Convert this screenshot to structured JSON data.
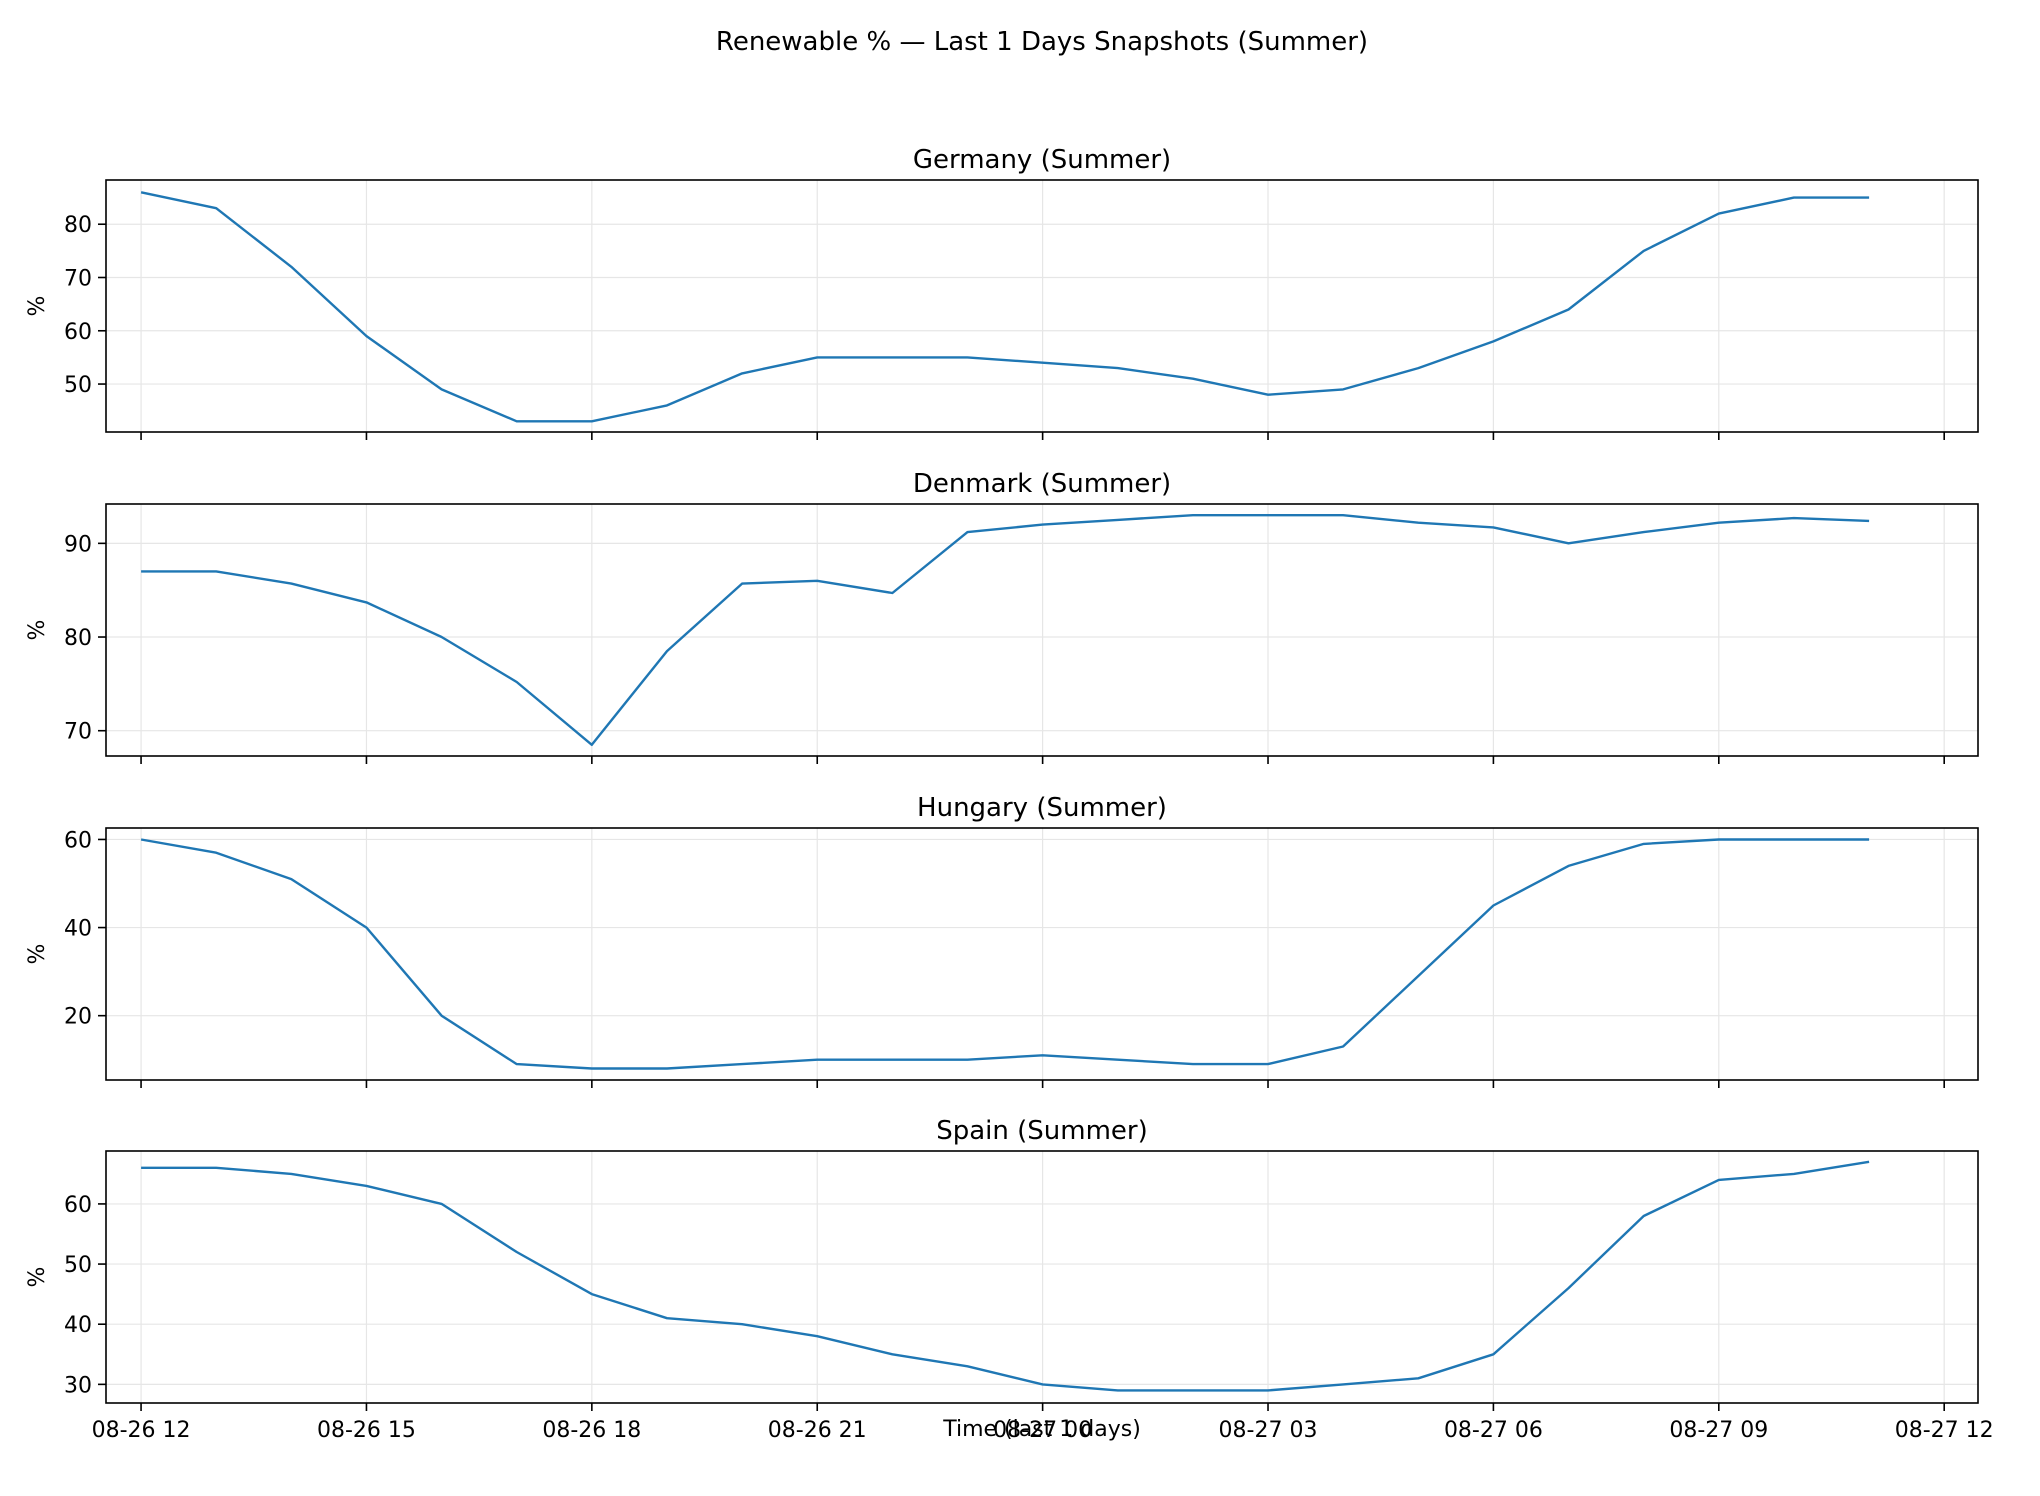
{
  "figure": {
    "title": "Renewable % — Last 1 Days Snapshots (Summer)",
    "xlabel": "Time (last 1 days)",
    "line_color": "#1f77b4",
    "grid_color": "#e6e6e6"
  },
  "chart_data": [
    {
      "type": "line",
      "title": "Germany (Summer)",
      "ylabel": "%",
      "xlim": [
        "2025-08-26 11:32",
        "2025-08-27 12:27"
      ],
      "ylim": [
        41.0,
        88.3
      ],
      "yticks": [
        50,
        60,
        70,
        80
      ],
      "xtick_labels": [
        "08-26 12",
        "08-26 15",
        "08-26 18",
        "08-26 21",
        "08-27 00",
        "08-27 03",
        "08-27 06",
        "08-27 09",
        "08-27 12"
      ],
      "grid": true,
      "x": [
        "2025-08-26 12:00",
        "2025-08-26 13:00",
        "2025-08-26 14:00",
        "2025-08-26 15:00",
        "2025-08-26 16:00",
        "2025-08-26 17:00",
        "2025-08-26 18:00",
        "2025-08-26 19:00",
        "2025-08-26 20:00",
        "2025-08-26 21:00",
        "2025-08-26 22:00",
        "2025-08-26 23:00",
        "2025-08-27 00:00",
        "2025-08-27 01:00",
        "2025-08-27 02:00",
        "2025-08-27 03:00",
        "2025-08-27 04:00",
        "2025-08-27 05:00",
        "2025-08-27 06:00",
        "2025-08-27 07:00",
        "2025-08-27 08:00",
        "2025-08-27 09:00",
        "2025-08-27 10:00",
        "2025-08-27 11:00"
      ],
      "series": [
        {
          "values": [
            86,
            83,
            72,
            59,
            49,
            43,
            43,
            46,
            52,
            55,
            55,
            55,
            54,
            53,
            51,
            48,
            49,
            53,
            58,
            64,
            75,
            82,
            85,
            85
          ]
        }
      ]
    },
    {
      "type": "line",
      "title": "Denmark (Summer)",
      "ylabel": "%",
      "xlim": [
        "2025-08-26 11:32",
        "2025-08-27 12:27"
      ],
      "ylim": [
        67.3,
        94.2
      ],
      "yticks": [
        70,
        80,
        90
      ],
      "xtick_labels": [
        "08-26 12",
        "08-26 15",
        "08-26 18",
        "08-26 21",
        "08-27 00",
        "08-27 03",
        "08-27 06",
        "08-27 09",
        "08-27 12"
      ],
      "grid": true,
      "x": [
        "2025-08-26 12:00",
        "2025-08-26 13:00",
        "2025-08-26 14:00",
        "2025-08-26 15:00",
        "2025-08-26 16:00",
        "2025-08-26 17:00",
        "2025-08-26 18:00",
        "2025-08-26 19:00",
        "2025-08-26 20:00",
        "2025-08-26 21:00",
        "2025-08-26 22:00",
        "2025-08-26 23:00",
        "2025-08-27 00:00",
        "2025-08-27 01:00",
        "2025-08-27 02:00",
        "2025-08-27 03:00",
        "2025-08-27 04:00",
        "2025-08-27 05:00",
        "2025-08-27 06:00",
        "2025-08-27 07:00",
        "2025-08-27 08:00",
        "2025-08-27 09:00",
        "2025-08-27 10:00",
        "2025-08-27 11:00"
      ],
      "series": [
        {
          "values": [
            87.0,
            87.0,
            85.7,
            83.7,
            80.0,
            75.2,
            68.5,
            78.5,
            85.7,
            86.0,
            84.7,
            91.2,
            92.0,
            92.5,
            93.0,
            93.0,
            93.0,
            92.2,
            91.7,
            90.0,
            91.2,
            92.2,
            92.7,
            92.4
          ]
        }
      ]
    },
    {
      "type": "line",
      "title": "Hungary (Summer)",
      "ylabel": "%",
      "xlim": [
        "2025-08-26 11:32",
        "2025-08-27 12:27"
      ],
      "ylim": [
        5.4,
        62.6
      ],
      "yticks": [
        20,
        40,
        60
      ],
      "xtick_labels": [
        "08-26 12",
        "08-26 15",
        "08-26 18",
        "08-26 21",
        "08-27 00",
        "08-27 03",
        "08-27 06",
        "08-27 09",
        "08-27 12"
      ],
      "grid": true,
      "x": [
        "2025-08-26 12:00",
        "2025-08-26 13:00",
        "2025-08-26 14:00",
        "2025-08-26 15:00",
        "2025-08-26 16:00",
        "2025-08-26 17:00",
        "2025-08-26 18:00",
        "2025-08-26 19:00",
        "2025-08-26 20:00",
        "2025-08-26 21:00",
        "2025-08-26 22:00",
        "2025-08-26 23:00",
        "2025-08-27 00:00",
        "2025-08-27 01:00",
        "2025-08-27 02:00",
        "2025-08-27 03:00",
        "2025-08-27 04:00",
        "2025-08-27 05:00",
        "2025-08-27 06:00",
        "2025-08-27 07:00",
        "2025-08-27 08:00",
        "2025-08-27 09:00",
        "2025-08-27 10:00",
        "2025-08-27 11:00"
      ],
      "series": [
        {
          "values": [
            60,
            57,
            51,
            40,
            20,
            9,
            8,
            8,
            9,
            10,
            10,
            10,
            11,
            10,
            9,
            9,
            13,
            29,
            45,
            54,
            59,
            60,
            60,
            60
          ]
        }
      ]
    },
    {
      "type": "line",
      "title": "Spain (Summer)",
      "ylabel": "%",
      "xlim": [
        "2025-08-26 11:32",
        "2025-08-27 12:27"
      ],
      "ylim": [
        26.9,
        68.8
      ],
      "yticks": [
        30,
        40,
        50,
        60
      ],
      "xtick_labels": [
        "08-26 12",
        "08-26 15",
        "08-26 18",
        "08-26 21",
        "08-27 00",
        "08-27 03",
        "08-27 06",
        "08-27 09",
        "08-27 12"
      ],
      "grid": true,
      "x": [
        "2025-08-26 12:00",
        "2025-08-26 13:00",
        "2025-08-26 14:00",
        "2025-08-26 15:00",
        "2025-08-26 16:00",
        "2025-08-26 17:00",
        "2025-08-26 18:00",
        "2025-08-26 19:00",
        "2025-08-26 20:00",
        "2025-08-26 21:00",
        "2025-08-26 22:00",
        "2025-08-26 23:00",
        "2025-08-27 00:00",
        "2025-08-27 01:00",
        "2025-08-27 02:00",
        "2025-08-27 03:00",
        "2025-08-27 04:00",
        "2025-08-27 05:00",
        "2025-08-27 06:00",
        "2025-08-27 07:00",
        "2025-08-27 08:00",
        "2025-08-27 09:00",
        "2025-08-27 10:00",
        "2025-08-27 11:00"
      ],
      "series": [
        {
          "values": [
            66,
            66,
            65,
            63,
            60,
            52,
            45,
            41,
            40,
            38,
            35,
            33,
            30,
            29,
            29,
            29,
            30,
            31,
            35,
            46,
            58,
            64,
            65,
            67
          ]
        }
      ]
    }
  ]
}
